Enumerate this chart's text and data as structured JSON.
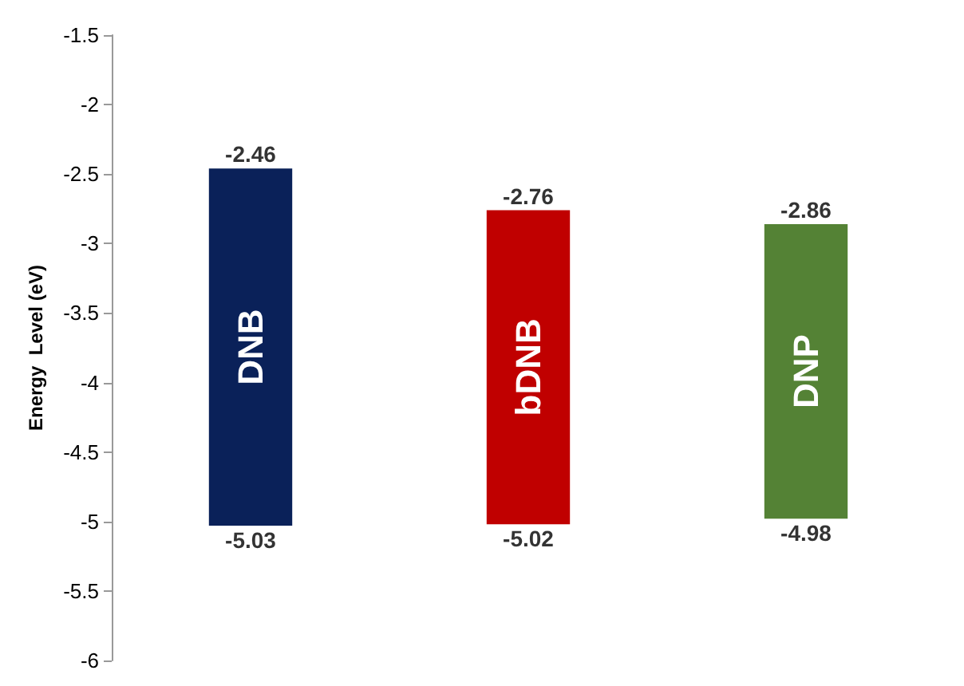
{
  "chart_data": {
    "type": "bar",
    "ylabel": "Energy  Level (eV)",
    "categories": [
      "DNB",
      "bDNB",
      "DNP"
    ],
    "values": [
      2.57,
      2.26,
      2.12
    ],
    "base": [
      -5.03,
      -5.02,
      -4.98
    ],
    "colors": [
      "#0a2159",
      "#c00000",
      "#548235"
    ],
    "ylim": [
      -6,
      -1.5
    ],
    "yticks": [
      -6,
      -5.5,
      -5,
      -4.5,
      -4,
      -3.5,
      -3,
      -2.5,
      -2,
      -1.5
    ],
    "grid": false,
    "tick_labels": "y",
    "annotations": [
      {
        "text": "-2.46",
        "x": "DNB",
        "y": -2.46
      },
      {
        "text": "-5.03",
        "x": "DNB",
        "y": -5.03
      },
      {
        "text": "-2.76",
        "x": "bDNB",
        "y": -2.76
      },
      {
        "text": "-5.02",
        "x": "bDNB",
        "y": -5.02
      },
      {
        "text": "-2.86",
        "x": "DNP",
        "y": -2.86
      },
      {
        "text": "-4.98",
        "x": "DNP",
        "y": -4.98
      }
    ]
  }
}
